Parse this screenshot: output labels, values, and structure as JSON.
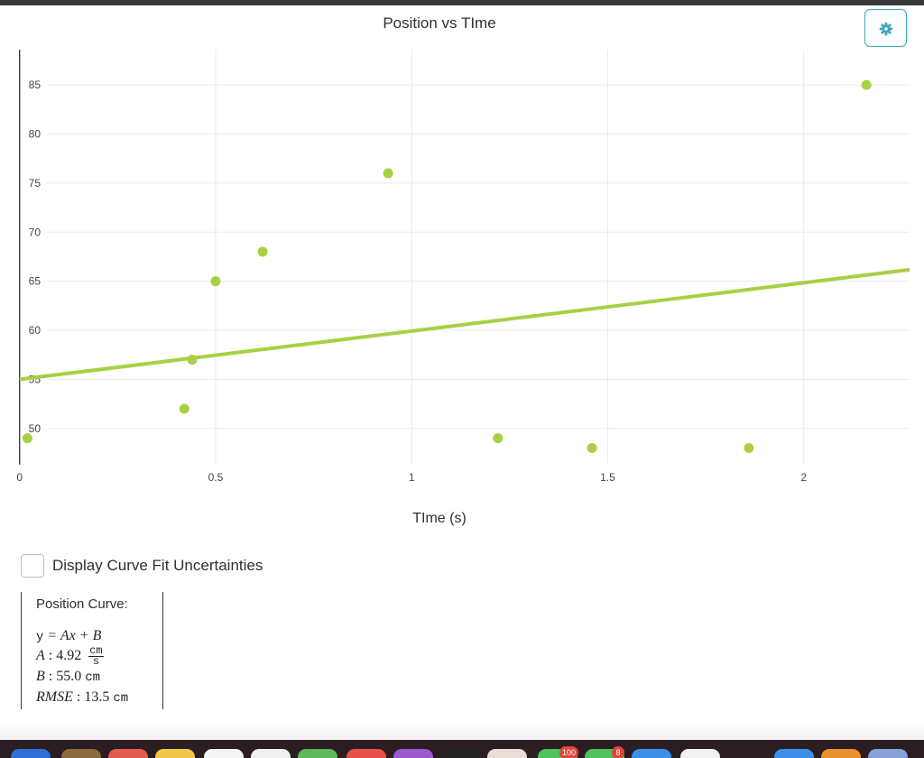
{
  "chart_data": {
    "type": "scatter",
    "title": "Position vs TIme",
    "xlabel": "TIme (s)",
    "ylabel": "",
    "xlim": [
      -0.05,
      2.27
    ],
    "ylim": [
      46.3,
      88.6
    ],
    "x_ticks": [
      0,
      0.5,
      1,
      1.5,
      2
    ],
    "x_tick_labels": [
      "0",
      "0.5",
      "1",
      "1.5",
      "2"
    ],
    "y_ticks": [
      50,
      55,
      60,
      65,
      70,
      75,
      80,
      85
    ],
    "y_tick_labels": [
      "50",
      "55",
      "60",
      "65",
      "70",
      "75",
      "80",
      "85"
    ],
    "grid": true,
    "series": [
      {
        "type": "scatter",
        "x": [
          0.02,
          0.42,
          0.44,
          0.5,
          0.62,
          0.94,
          1.22,
          1.46,
          1.86,
          2.16
        ],
        "y": [
          49,
          52,
          57,
          65,
          68,
          76,
          49,
          48,
          48,
          85
        ],
        "color": "#a8d043"
      },
      {
        "type": "line",
        "x": [
          0,
          2.27
        ],
        "y": [
          55.0,
          66.17
        ],
        "color": "#a8d043"
      }
    ]
  },
  "settings_icon": "gear-icon",
  "accent_color": "#3aa8b4",
  "fit_toggle": {
    "label": "Display Curve Fit Uncertainties",
    "checked": false
  },
  "curve_panel": {
    "title": "Position Curve:",
    "eq_y": "y",
    "eq_rhs": "= Ax + B",
    "a_name": "A",
    "a_value": ": 4.92",
    "a_unit_num": "cm",
    "a_unit_den": "s",
    "b_name": "B",
    "b_value": ": 55.0",
    "b_unit": "cm",
    "rmse_name": "RMSE",
    "rmse_value": ": 13.5",
    "rmse_unit": "cm"
  },
  "dock_badges": [
    "100",
    "8"
  ]
}
